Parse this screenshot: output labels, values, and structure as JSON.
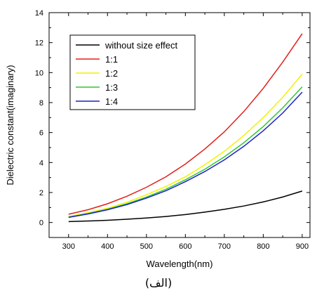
{
  "chart_data": {
    "type": "line",
    "xlabel": "Wavelength(nm)",
    "ylabel": "Dielectric constant(imaginary)",
    "xlim": [
      250,
      920
    ],
    "ylim": [
      -1,
      14
    ],
    "xticks": [
      300,
      400,
      500,
      600,
      700,
      800,
      900
    ],
    "yticks": [
      0,
      2,
      4,
      6,
      8,
      10,
      12,
      14
    ],
    "grid": false,
    "legend_position": "top-left",
    "x": [
      300,
      350,
      400,
      450,
      500,
      550,
      600,
      650,
      700,
      750,
      800,
      850,
      900
    ],
    "series": [
      {
        "name": "without size effect",
        "color": "#000000",
        "values": [
          0.06,
          0.1,
          0.15,
          0.22,
          0.3,
          0.4,
          0.53,
          0.69,
          0.88,
          1.1,
          1.37,
          1.7,
          2.1
        ]
      },
      {
        "name": "1:1",
        "color": "#e0201a",
        "values": [
          0.55,
          0.85,
          1.25,
          1.75,
          2.35,
          3.05,
          3.9,
          4.9,
          6.05,
          7.4,
          8.95,
          10.7,
          12.6
        ]
      },
      {
        "name": "1:2",
        "color": "#f2f200",
        "values": [
          0.4,
          0.65,
          0.95,
          1.35,
          1.85,
          2.4,
          3.05,
          3.85,
          4.75,
          5.8,
          7.0,
          8.35,
          9.9
        ]
      },
      {
        "name": "1:3",
        "color": "#2ec82e",
        "values": [
          0.36,
          0.6,
          0.88,
          1.25,
          1.7,
          2.22,
          2.85,
          3.55,
          4.38,
          5.32,
          6.4,
          7.65,
          9.05
        ]
      },
      {
        "name": "1:4",
        "color": "#1f1fc8",
        "values": [
          0.34,
          0.57,
          0.85,
          1.2,
          1.63,
          2.12,
          2.72,
          3.4,
          4.18,
          5.08,
          6.12,
          7.3,
          8.7
        ]
      }
    ]
  },
  "caption": "(الف)"
}
